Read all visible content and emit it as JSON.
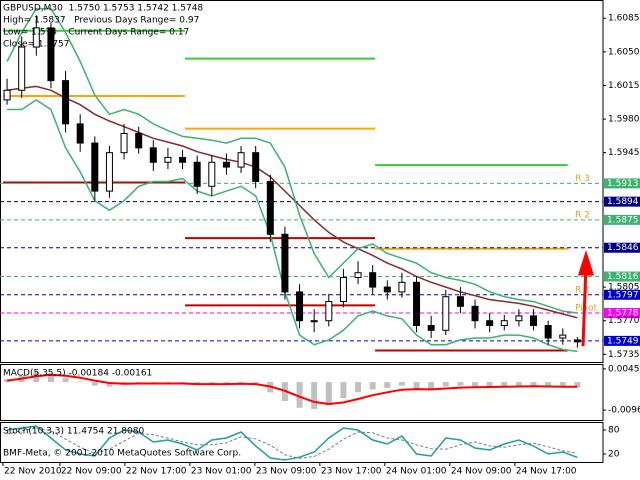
{
  "chart_data": [
    {
      "type": "candlestick",
      "title": "GBPUSD,M30  1.5750 1.5753 1.5742 1.5748",
      "info": [
        "High= 1.5837   Previous Days Range= 0.97",
        "Low= 1.574    Current Days Range= 0.17",
        "Close= 1.5757"
      ],
      "x": [
        2.5,
        4.3,
        6.1,
        7.9,
        9.7,
        11.5,
        13.3,
        15.1,
        16.9,
        18.7,
        20.5,
        22.3,
        24.1,
        25.9,
        27.7,
        29.5,
        31.3,
        33.1,
        34.9,
        36.7,
        38.5,
        40.3,
        42.1,
        43.9,
        45.7,
        47.5,
        49.3,
        51.1,
        52.9,
        54.7,
        56.5,
        58.3,
        60.1,
        61.9,
        63.7,
        65.5,
        67.3,
        69.1,
        70.9,
        72.7
      ],
      "open": [
        1.6,
        1.601,
        1.6055,
        1.6075,
        1.602,
        1.5975,
        1.5955,
        1.5905,
        1.5945,
        1.5965,
        1.595,
        1.5935,
        1.594,
        1.5935,
        1.591,
        1.5935,
        1.593,
        1.5945,
        1.5915,
        1.586,
        1.58,
        1.577,
        1.577,
        1.579,
        1.5815,
        1.582,
        1.5805,
        1.58,
        1.581,
        1.5765,
        1.576,
        1.5795,
        1.5785,
        1.577,
        1.5765,
        1.577,
        1.5775,
        1.5765,
        1.5752,
        1.575
      ],
      "high": [
        1.6022,
        1.6066,
        1.6088,
        1.608,
        1.603,
        1.5985,
        1.5962,
        1.5952,
        1.5975,
        1.5972,
        1.5958,
        1.595,
        1.5948,
        1.5942,
        1.5942,
        1.5944,
        1.5952,
        1.5952,
        1.5922,
        1.5868,
        1.5808,
        1.5782,
        1.5798,
        1.5824,
        1.5832,
        1.5828,
        1.5812,
        1.582,
        1.5816,
        1.5775,
        1.5802,
        1.5805,
        1.5792,
        1.5778,
        1.5776,
        1.5782,
        1.5782,
        1.577,
        1.5762,
        1.5753
      ],
      "low": [
        1.5995,
        1.6002,
        1.6046,
        1.6012,
        1.5966,
        1.5946,
        1.5895,
        1.5898,
        1.5938,
        1.5944,
        1.5926,
        1.5928,
        1.5928,
        1.5902,
        1.59,
        1.5922,
        1.5924,
        1.5908,
        1.5852,
        1.5792,
        1.5762,
        1.5758,
        1.5764,
        1.5784,
        1.5808,
        1.5798,
        1.5792,
        1.5794,
        1.5758,
        1.5752,
        1.5755,
        1.5778,
        1.5762,
        1.5758,
        1.576,
        1.5764,
        1.576,
        1.5745,
        1.5745,
        1.5742
      ],
      "close": [
        1.601,
        1.6055,
        1.6075,
        1.602,
        1.5975,
        1.5955,
        1.5905,
        1.5945,
        1.5965,
        1.595,
        1.5935,
        1.594,
        1.5935,
        1.591,
        1.5935,
        1.593,
        1.5945,
        1.5915,
        1.586,
        1.58,
        1.577,
        1.577,
        1.579,
        1.5815,
        1.582,
        1.5805,
        1.58,
        1.581,
        1.5765,
        1.576,
        1.5795,
        1.5785,
        1.577,
        1.5765,
        1.577,
        1.5775,
        1.5765,
        1.5752,
        1.5755,
        1.5748
      ],
      "overlays": [
        {
          "color": "#8b2a2a",
          "values": [
            1.601,
            1.6012,
            1.6014,
            1.601,
            1.6002,
            1.5995,
            1.5985,
            1.5978,
            1.5972,
            1.5966,
            1.596,
            1.5956,
            1.5952,
            1.5946,
            1.5942,
            1.5938,
            1.5935,
            1.593,
            1.592,
            1.5905,
            1.589,
            1.5875,
            1.5862,
            1.5852,
            1.5845,
            1.5838,
            1.583,
            1.5824,
            1.5816,
            1.581,
            1.5805,
            1.58,
            1.5796,
            1.5792,
            1.579,
            1.5788,
            1.5785,
            1.5781,
            1.5777,
            1.5773
          ]
        },
        {
          "color": "#3cb371",
          "values": [
            1.604,
            1.607,
            1.6095,
            1.6095,
            1.607,
            1.604,
            1.6005,
            1.5985,
            1.599,
            1.5985,
            1.5975,
            1.5968,
            1.5962,
            1.596,
            1.5958,
            1.5955,
            1.596,
            1.596,
            1.5955,
            1.593,
            1.588,
            1.584,
            1.5815,
            1.583,
            1.5845,
            1.585,
            1.584,
            1.5835,
            1.583,
            1.582,
            1.5815,
            1.5812,
            1.5808,
            1.58,
            1.5795,
            1.5792,
            1.579,
            1.5785,
            1.578,
            1.5778
          ]
        },
        {
          "color": "#3cb371",
          "values": [
            1.599,
            1.599,
            1.6,
            1.599,
            1.595,
            1.5925,
            1.5895,
            1.5885,
            1.5895,
            1.591,
            1.5915,
            1.5915,
            1.5918,
            1.5905,
            1.59,
            1.5905,
            1.591,
            1.59,
            1.586,
            1.58,
            1.5755,
            1.5745,
            1.575,
            1.576,
            1.5775,
            1.578,
            1.5775,
            1.5772,
            1.5755,
            1.5745,
            1.5745,
            1.575,
            1.5752,
            1.5752,
            1.5755,
            1.5755,
            1.5752,
            1.5745,
            1.574,
            1.5738
          ]
        }
      ],
      "pivot_lines": {
        "breaks": [
          2,
          24.4,
          47.8,
          71.5
        ],
        "series": [
          {
            "color": "#32cd32",
            "values": [
              1.6072,
              1.6043,
              1.5932
            ]
          },
          {
            "color": "#ffa500",
            "values": [
              1.6004,
              1.597,
              1.5845
            ]
          },
          {
            "color": "#c00000",
            "values": [
              1.5914,
              1.5856,
              1.5739
            ]
          },
          {
            "color": "#c00000",
            "values": [
              null,
              1.5786,
              null
            ]
          }
        ]
      },
      "levels": [
        {
          "value": 1.5913,
          "color": "#3cb371",
          "label": "R 3"
        },
        {
          "value": 1.5894,
          "color": "#000080"
        },
        {
          "value": 1.5875,
          "color": "#3cb371",
          "label": "R 2"
        },
        {
          "value": 1.5846,
          "color": "#000080"
        },
        {
          "value": 1.5816,
          "color": "#3cb371"
        },
        {
          "value": 1.5797,
          "color": "#0000cd",
          "label": "R 1"
        },
        {
          "value": 1.5778,
          "color": "#ff00ff",
          "label": "Pivot"
        },
        {
          "value": 1.5749,
          "color": "#0000cd"
        }
      ],
      "xlim": [
        1.63,
        75.85
      ],
      "ylim": [
        1.5727,
        1.6104
      ],
      "xticks": [
        {
          "value": 2,
          "label": "22 Nov 2010"
        },
        {
          "value": 9,
          "label": "22 Nov 09:00"
        },
        {
          "value": 17,
          "label": "22 Nov 17:00"
        },
        {
          "value": 25,
          "label": "23 Nov 01:00"
        },
        {
          "value": 33,
          "label": "23 Nov 09:00"
        },
        {
          "value": 41,
          "label": "23 Nov 17:00"
        },
        {
          "value": 49,
          "label": "24 Nov 01:00"
        },
        {
          "value": 57,
          "label": "24 Nov 09:00"
        },
        {
          "value": 65,
          "label": "24 Nov 17:00"
        }
      ],
      "yticks": [
        1.6085,
        {
          "value": 1.605,
          "label": "1.6050"
        },
        1.6015,
        {
          "value": 1.598,
          "label": "1.5980"
        },
        1.5945,
        1.5805,
        {
          "value": 1.577,
          "label": "1.5770"
        },
        1.5735
      ],
      "grid": false
    },
    {
      "type": "macd",
      "title": "MACD(5,35,5) -0.00184 -0.00161",
      "color": "#c0c0c0",
      "values": [
        0.001,
        0.0025,
        0.0035,
        0.003,
        0.0015,
        0.0002,
        -0.0012,
        -0.0015,
        -0.0008,
        -0.0002,
        -0.0004,
        -0.0005,
        -0.0004,
        -0.001,
        -0.0008,
        -0.0006,
        -0.0003,
        -0.001,
        -0.0035,
        -0.0065,
        -0.0088,
        -0.0092,
        -0.008,
        -0.0055,
        -0.0035,
        -0.0025,
        -0.002,
        -0.0012,
        -0.0022,
        -0.0028,
        -0.0015,
        -0.0012,
        -0.0016,
        -0.0018,
        -0.0015,
        -0.0012,
        -0.0013,
        -0.0018,
        -0.0017,
        -0.00184
      ],
      "signal": {
        "color": "#ff0000",
        "values": [
          0.0005,
          0.0012,
          0.002,
          0.0025,
          0.0022,
          0.0015,
          0.0005,
          -0.0003,
          -0.0006,
          -0.0005,
          -0.0005,
          -0.0005,
          -0.0005,
          -0.0007,
          -0.0007,
          -0.0007,
          -0.0006,
          -0.0007,
          -0.0015,
          -0.003,
          -0.005,
          -0.0068,
          -0.0075,
          -0.007,
          -0.0058,
          -0.0045,
          -0.0035,
          -0.0026,
          -0.0024,
          -0.0025,
          -0.0022,
          -0.0019,
          -0.0018,
          -0.0017,
          -0.0016,
          -0.0015,
          -0.0014,
          -0.0015,
          -0.0016,
          -0.00161
        ]
      },
      "ylim": [
        -0.013,
        0.0062
      ],
      "yticks": [
        0.00451,
        -0.00961
      ]
    },
    {
      "type": "stochastic",
      "title": "Stoch(10,3,3) 11.4754 21.8080",
      "series": [
        {
          "color": "#20a0a0",
          "dash": false,
          "values": [
            80,
            85,
            90,
            60,
            30,
            20,
            15,
            60,
            80,
            75,
            50,
            55,
            45,
            30,
            55,
            60,
            75,
            40,
            10,
            5,
            12,
            25,
            60,
            85,
            80,
            55,
            45,
            65,
            20,
            15,
            60,
            55,
            35,
            30,
            45,
            55,
            40,
            20,
            25,
            11.4754
          ]
        },
        {
          "color": "#708090",
          "dash": true,
          "values": [
            70,
            78,
            85,
            78,
            57,
            37,
            22,
            32,
            52,
            72,
            68,
            60,
            50,
            43,
            43,
            48,
            63,
            58,
            42,
            18,
            9,
            14,
            32,
            57,
            75,
            73,
            60,
            55,
            43,
            33,
            32,
            43,
            50,
            40,
            37,
            43,
            47,
            38,
            28,
            21.808
          ]
        }
      ],
      "ylim": [
        0,
        100
      ],
      "yticks": [
        80,
        20
      ]
    }
  ],
  "copyright": "BMF-Meta, © 2001-2010 MetaQuotes Software Corp."
}
